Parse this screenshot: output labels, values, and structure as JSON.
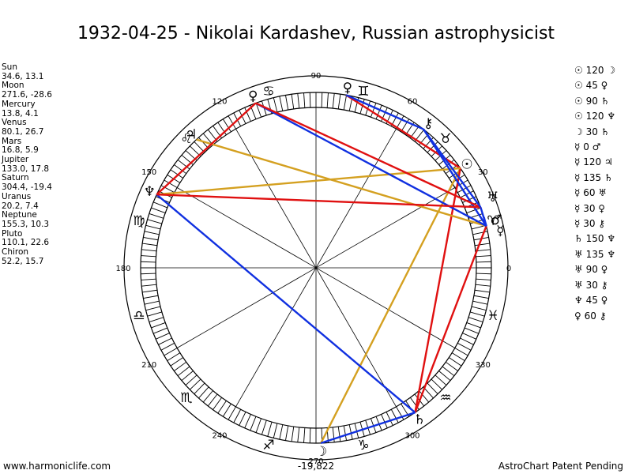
{
  "title": "1932-04-25 - Nikolai Kardashev, Russian astrophysicist",
  "footer_left": "www.harmoniclife.com",
  "footer_right": "AstroChart Patent Pending",
  "coordinate_readout": "-19,822",
  "chart_data": {
    "type": "astrological-wheel",
    "degree_labels": [
      "0",
      "30",
      "60",
      "90",
      "120",
      "150",
      "180",
      "210",
      "240",
      "270",
      "300",
      "330"
    ],
    "zodiac_signs": [
      {
        "name": "aries",
        "glyph": "♈︎",
        "start": 0
      },
      {
        "name": "taurus",
        "glyph": "♉︎",
        "start": 30
      },
      {
        "name": "gemini",
        "glyph": "♊︎",
        "start": 60
      },
      {
        "name": "cancer",
        "glyph": "♋︎",
        "start": 90
      },
      {
        "name": "leo",
        "glyph": "♌︎",
        "start": 120
      },
      {
        "name": "virgo",
        "glyph": "♍︎",
        "start": 150
      },
      {
        "name": "libra",
        "glyph": "♎︎",
        "start": 180
      },
      {
        "name": "scorpio",
        "glyph": "♏︎",
        "start": 210
      },
      {
        "name": "sagittarius",
        "glyph": "♐︎",
        "start": 240
      },
      {
        "name": "capricorn",
        "glyph": "♑︎",
        "start": 270
      },
      {
        "name": "aquarius",
        "glyph": "♒︎",
        "start": 300
      },
      {
        "name": "pisces",
        "glyph": "♓︎",
        "start": 330
      }
    ],
    "planets": [
      {
        "name": "Sun",
        "glyph": "☉",
        "longitude": 34.6,
        "latitude": 13.1,
        "position": "34.6, 13.1"
      },
      {
        "name": "Moon",
        "glyph": "☽",
        "longitude": 271.6,
        "latitude": -28.6,
        "position": "271.6, -28.6"
      },
      {
        "name": "Mercury",
        "glyph": "☿",
        "longitude": 13.8,
        "latitude": 4.1,
        "position": "13.8, 4.1"
      },
      {
        "name": "Venus",
        "glyph": "♀",
        "longitude": 80.1,
        "latitude": 26.7,
        "position": "80.1, 26.7"
      },
      {
        "name": "Mars",
        "glyph": "♂",
        "longitude": 16.8,
        "latitude": 5.9,
        "position": "16.8, 5.9"
      },
      {
        "name": "Jupiter",
        "glyph": "♃",
        "longitude": 133.0,
        "latitude": 17.8,
        "position": "133.0, 17.8"
      },
      {
        "name": "Saturn",
        "glyph": "♄",
        "longitude": 304.4,
        "latitude": -19.4,
        "position": "304.4, -19.4"
      },
      {
        "name": "Uranus",
        "glyph": "♅",
        "longitude": 20.2,
        "latitude": 7.4,
        "position": "20.2, 7.4"
      },
      {
        "name": "Neptune",
        "glyph": "♆",
        "longitude": 155.3,
        "latitude": 10.3,
        "position": "155.3, 10.3"
      },
      {
        "name": "Pluto",
        "glyph": "♀",
        "longitude": 110.1,
        "latitude": 22.6,
        "position": "110.1, 22.6"
      },
      {
        "name": "Chiron",
        "glyph": "⚷",
        "longitude": 52.2,
        "latitude": 15.7,
        "position": "52.2, 15.7"
      }
    ],
    "aspects": [
      {
        "p1": "Sun",
        "angle": "120",
        "p2": "Moon",
        "g1": "☉",
        "g2": "☽",
        "color": "#d4a020"
      },
      {
        "p1": "Sun",
        "angle": "45",
        "p2": "Venus",
        "g1": "☉",
        "g2": "♀",
        "color": "#e01010"
      },
      {
        "p1": "Sun",
        "angle": "90",
        "p2": "Saturn",
        "g1": "☉",
        "g2": "♄",
        "color": "#e01010"
      },
      {
        "p1": "Sun",
        "angle": "120",
        "p2": "Neptune",
        "g1": "☉",
        "g2": "♆",
        "color": "#d4a020"
      },
      {
        "p1": "Moon",
        "angle": "30",
        "p2": "Saturn",
        "g1": "☽",
        "g2": "♄",
        "color": "#1030e0"
      },
      {
        "p1": "Mercury",
        "angle": "0",
        "p2": "Mars",
        "g1": "☿",
        "g2": "♂",
        "color": "#1030e0"
      },
      {
        "p1": "Mercury",
        "angle": "120",
        "p2": "Jupiter",
        "g1": "☿",
        "g2": "♃",
        "color": "#d4a020"
      },
      {
        "p1": "Mercury",
        "angle": "135",
        "p2": "Saturn",
        "g1": "☿",
        "g2": "♄",
        "color": "#e01010"
      },
      {
        "p1": "Mercury",
        "angle": "60",
        "p2": "Uranus",
        "g1": "☿",
        "g2": "♅",
        "color": "#1030e0"
      },
      {
        "p1": "Mercury",
        "angle": "30",
        "p2": "Pluto",
        "g1": "☿",
        "g2": "♀",
        "color": "#1030e0"
      },
      {
        "p1": "Mercury",
        "angle": "30",
        "p2": "Chiron",
        "g1": "☿",
        "g2": "⚷",
        "color": "#1030e0"
      },
      {
        "p1": "Saturn",
        "angle": "150",
        "p2": "Neptune",
        "g1": "♄",
        "g2": "♆",
        "color": "#1030e0"
      },
      {
        "p1": "Uranus",
        "angle": "135",
        "p2": "Neptune",
        "g1": "♅",
        "g2": "♆",
        "color": "#e01010"
      },
      {
        "p1": "Uranus",
        "angle": "90",
        "p2": "Pluto",
        "g1": "♅",
        "g2": "♀",
        "color": "#e01010"
      },
      {
        "p1": "Uranus",
        "angle": "30",
        "p2": "Chiron",
        "g1": "♅",
        "g2": "⚷",
        "color": "#1030e0"
      },
      {
        "p1": "Neptune",
        "angle": "45",
        "p2": "Pluto",
        "g1": "♆",
        "g2": "♀",
        "color": "#e01010"
      },
      {
        "p1": "Venus",
        "angle": "60",
        "p2": "Chiron",
        "g1": "♀",
        "g2": "⚷",
        "color": "#1030e0"
      }
    ],
    "colors": {
      "square": "#e01010",
      "trine": "#d4a020",
      "sextile": "#1030e0",
      "wheel": "#000000"
    }
  }
}
